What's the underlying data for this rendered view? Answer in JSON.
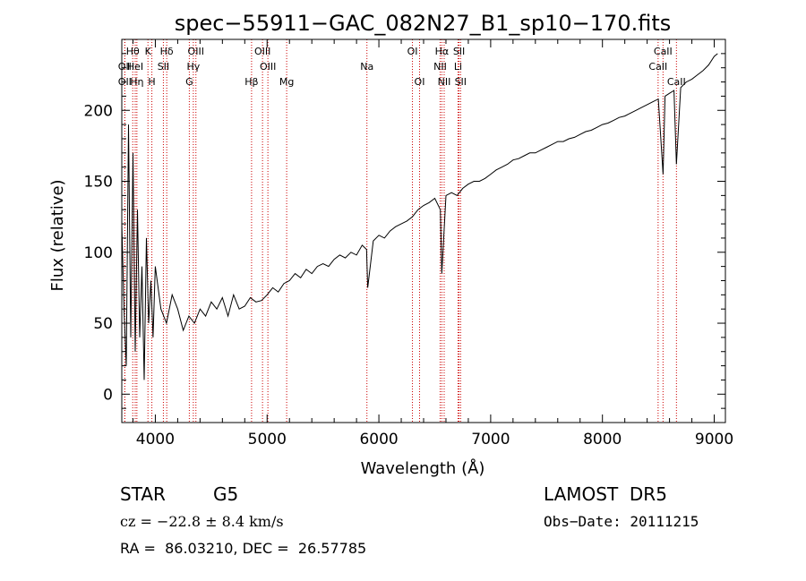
{
  "chart_data": {
    "type": "line",
    "title": "spec−55911−GAC_082N27_B1_sp10−170.fits",
    "xlabel": "Wavelength (Å)",
    "ylabel": "Flux (relative)",
    "xlim": [
      3700,
      9100
    ],
    "ylim": [
      -20,
      250
    ],
    "x_ticks": [
      4000,
      5000,
      6000,
      7000,
      8000,
      9000
    ],
    "x_tick_labels": [
      "4000",
      "5000",
      "6000",
      "7000",
      "8000",
      "9000"
    ],
    "y_ticks": [
      0,
      50,
      100,
      150,
      200
    ],
    "y_tick_labels": [
      "0",
      "50",
      "100",
      "150",
      "200"
    ],
    "grid": false,
    "line_color": "#000000",
    "marker_line_color": "#cc0000",
    "series": [
      {
        "x": [
          3700,
          3720,
          3740,
          3760,
          3780,
          3800,
          3820,
          3840,
          3860,
          3880,
          3900,
          3920,
          3940,
          3960,
          3980,
          4000,
          4050,
          4100,
          4150,
          4200,
          4250,
          4300,
          4350,
          4400,
          4450,
          4500,
          4550,
          4600,
          4650,
          4700,
          4750,
          4800,
          4850,
          4900,
          4950,
          5000,
          5050,
          5100,
          5150,
          5200,
          5250,
          5300,
          5350,
          5400,
          5450,
          5500,
          5550,
          5600,
          5650,
          5700,
          5750,
          5800,
          5850,
          5890,
          5900,
          5950,
          6000,
          6050,
          6100,
          6150,
          6200,
          6250,
          6300,
          6350,
          6400,
          6450,
          6500,
          6550,
          6563,
          6600,
          6650,
          6700,
          6750,
          6800,
          6850,
          6900,
          6950,
          7000,
          7050,
          7100,
          7150,
          7200,
          7250,
          7300,
          7350,
          7400,
          7450,
          7500,
          7550,
          7600,
          7650,
          7700,
          7750,
          7800,
          7850,
          7900,
          7950,
          8000,
          8050,
          8100,
          8150,
          8200,
          8250,
          8300,
          8350,
          8400,
          8450,
          8500,
          8542,
          8560,
          8600,
          8640,
          8662,
          8700,
          8750,
          8800,
          8850,
          8900,
          8950,
          9000,
          9030
        ],
        "y": [
          120,
          60,
          20,
          190,
          40,
          170,
          30,
          130,
          40,
          90,
          10,
          110,
          50,
          80,
          40,
          90,
          60,
          50,
          70,
          60,
          45,
          55,
          50,
          60,
          55,
          65,
          60,
          68,
          55,
          70,
          60,
          62,
          68,
          65,
          66,
          70,
          75,
          72,
          78,
          80,
          85,
          82,
          88,
          85,
          90,
          92,
          90,
          95,
          98,
          96,
          100,
          98,
          105,
          102,
          75,
          108,
          112,
          110,
          115,
          118,
          120,
          122,
          125,
          130,
          133,
          135,
          138,
          130,
          85,
          140,
          142,
          140,
          145,
          148,
          150,
          150,
          152,
          155,
          158,
          160,
          162,
          165,
          166,
          168,
          170,
          170,
          172,
          174,
          176,
          178,
          178,
          180,
          181,
          183,
          185,
          186,
          188,
          190,
          191,
          193,
          195,
          196,
          198,
          200,
          202,
          204,
          206,
          208,
          155,
          210,
          212,
          214,
          162,
          216,
          220,
          222,
          225,
          228,
          232,
          238,
          240
        ]
      }
    ],
    "spectral_lines": [
      {
        "label": "Hθ",
        "x": 3798,
        "row": 0
      },
      {
        "label": "OII",
        "x": 3727,
        "row": 1
      },
      {
        "label": "OII",
        "x": 3727,
        "row": 2
      },
      {
        "label": "HeI",
        "x": 3820,
        "row": 1
      },
      {
        "label": "Hη",
        "x": 3835,
        "row": 2
      },
      {
        "label": "K",
        "x": 3934,
        "row": 0
      },
      {
        "label": "H",
        "x": 3969,
        "row": 2
      },
      {
        "label": "Hδ",
        "x": 4102,
        "row": 0
      },
      {
        "label": "SII",
        "x": 4072,
        "row": 1
      },
      {
        "label": "OIII",
        "x": 4363,
        "row": 0
      },
      {
        "label": "Hγ",
        "x": 4340,
        "row": 1
      },
      {
        "label": "G",
        "x": 4304,
        "row": 2
      },
      {
        "label": "OIII",
        "x": 4959,
        "row": 0
      },
      {
        "label": "OIII",
        "x": 5007,
        "row": 1
      },
      {
        "label": "Hβ",
        "x": 4861,
        "row": 2
      },
      {
        "label": "Mg",
        "x": 5175,
        "row": 2
      },
      {
        "label": "Na",
        "x": 5893,
        "row": 1
      },
      {
        "label": "OI",
        "x": 6300,
        "row": 0
      },
      {
        "label": "OI",
        "x": 6364,
        "row": 2
      },
      {
        "label": "Hα",
        "x": 6563,
        "row": 0
      },
      {
        "label": "NII",
        "x": 6548,
        "row": 1
      },
      {
        "label": "NII",
        "x": 6584,
        "row": 2
      },
      {
        "label": "SII",
        "x": 6717,
        "row": 0
      },
      {
        "label": "Li",
        "x": 6708,
        "row": 1
      },
      {
        "label": "SII",
        "x": 6731,
        "row": 2
      },
      {
        "label": "CaII",
        "x": 8542,
        "row": 0
      },
      {
        "label": "CaII",
        "x": 8498,
        "row": 1
      },
      {
        "label": "CaII",
        "x": 8662,
        "row": 2
      }
    ]
  },
  "info": {
    "object_class": "STAR",
    "subclass": "G5",
    "survey": "LAMOST  DR5",
    "velocity": "cz = −22.8 ± 8.4 km/s",
    "obs_date": "Obs−Date: 20111215",
    "coords": "RA =  86.03210, DEC =  26.57785"
  }
}
